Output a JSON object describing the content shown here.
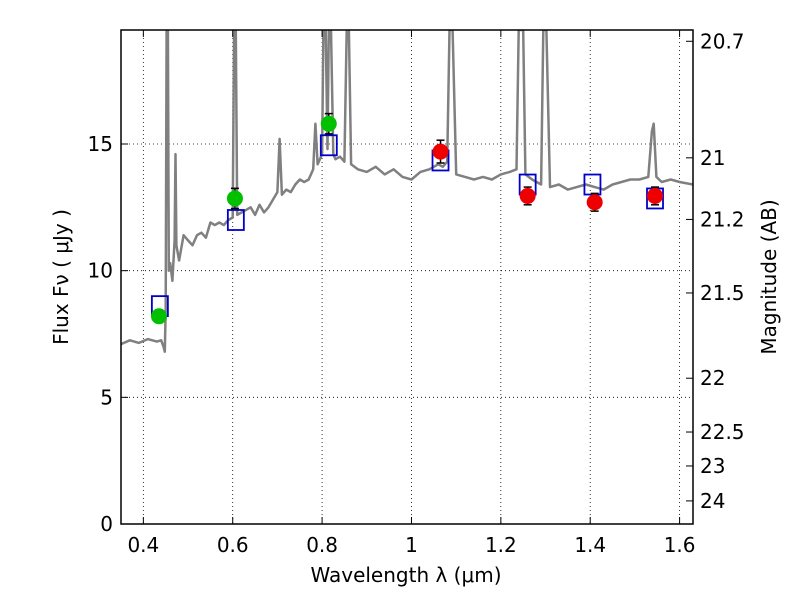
{
  "chart_data": {
    "type": "scatter",
    "xlabel": "Wavelength  λ (μm)",
    "ylabel": "Flux  Fν  ( μJy )",
    "y2label": "Magnitude (AB)",
    "xlim": [
      0.35,
      1.63
    ],
    "ylim": [
      0,
      19.5
    ],
    "grid": true,
    "x_ticks": [
      {
        "value": 0.4,
        "label": "0.4"
      },
      {
        "value": 0.6,
        "label": "0.6"
      },
      {
        "value": 0.8,
        "label": "0.8"
      },
      {
        "value": 1.0,
        "label": "1"
      },
      {
        "value": 1.2,
        "label": "1.2"
      },
      {
        "value": 1.4,
        "label": "1.4"
      },
      {
        "value": 1.6,
        "label": "1.6"
      }
    ],
    "y_ticks": [
      {
        "value": 0,
        "label": "0"
      },
      {
        "value": 5,
        "label": "5"
      },
      {
        "value": 10,
        "label": "10"
      },
      {
        "value": 15,
        "label": "15"
      }
    ],
    "y2_ticks": [
      {
        "value": 20.7,
        "label": "20.7"
      },
      {
        "value": 21,
        "label": "21"
      },
      {
        "value": 21.2,
        "label": "21.2"
      },
      {
        "value": 21.5,
        "label": "21.5"
      },
      {
        "value": 22,
        "label": "22"
      },
      {
        "value": 22.5,
        "label": "22.5"
      },
      {
        "value": 23,
        "label": "23"
      },
      {
        "value": 24,
        "label": "24"
      }
    ],
    "colors": {
      "spectrum": "#808080",
      "green": "#00c000",
      "red": "#ee0000",
      "model": "#0000cc",
      "error": "#000000"
    },
    "spectrum": [
      [
        0.35,
        7.1
      ],
      [
        0.37,
        7.25
      ],
      [
        0.39,
        7.15
      ],
      [
        0.41,
        7.3
      ],
      [
        0.43,
        7.2
      ],
      [
        0.44,
        7.25
      ],
      [
        0.445,
        7.0
      ],
      [
        0.448,
        6.8
      ],
      [
        0.45,
        8.5
      ],
      [
        0.452,
        19.5
      ],
      [
        0.455,
        19.5
      ],
      [
        0.457,
        10.0
      ],
      [
        0.46,
        10.3
      ],
      [
        0.465,
        9.6
      ],
      [
        0.47,
        11.2
      ],
      [
        0.472,
        14.6
      ],
      [
        0.474,
        11.0
      ],
      [
        0.48,
        10.4
      ],
      [
        0.49,
        11.4
      ],
      [
        0.5,
        11.2
      ],
      [
        0.51,
        11.0
      ],
      [
        0.52,
        11.4
      ],
      [
        0.53,
        11.5
      ],
      [
        0.54,
        11.3
      ],
      [
        0.55,
        11.9
      ],
      [
        0.56,
        11.8
      ],
      [
        0.57,
        11.9
      ],
      [
        0.58,
        11.8
      ],
      [
        0.59,
        12.0
      ],
      [
        0.6,
        12.1
      ],
      [
        0.603,
        19.5
      ],
      [
        0.607,
        19.5
      ],
      [
        0.61,
        12.2
      ],
      [
        0.62,
        12.3
      ],
      [
        0.63,
        12.4
      ],
      [
        0.64,
        12.5
      ],
      [
        0.65,
        12.2
      ],
      [
        0.66,
        12.6
      ],
      [
        0.67,
        12.3
      ],
      [
        0.68,
        12.5
      ],
      [
        0.69,
        12.8
      ],
      [
        0.7,
        13.1
      ],
      [
        0.705,
        15.2
      ],
      [
        0.71,
        13.0
      ],
      [
        0.72,
        13.2
      ],
      [
        0.73,
        13.1
      ],
      [
        0.74,
        13.4
      ],
      [
        0.75,
        13.6
      ],
      [
        0.76,
        13.5
      ],
      [
        0.77,
        13.6
      ],
      [
        0.78,
        14.0
      ],
      [
        0.785,
        15.8
      ],
      [
        0.79,
        14.2
      ],
      [
        0.795,
        14.4
      ],
      [
        0.8,
        14.6
      ],
      [
        0.803,
        19.5
      ],
      [
        0.808,
        19.5
      ],
      [
        0.812,
        14.8
      ],
      [
        0.815,
        19.5
      ],
      [
        0.82,
        19.5
      ],
      [
        0.825,
        14.6
      ],
      [
        0.83,
        14.4
      ],
      [
        0.84,
        14.5
      ],
      [
        0.85,
        14.3
      ],
      [
        0.855,
        19.5
      ],
      [
        0.86,
        19.5
      ],
      [
        0.865,
        14.2
      ],
      [
        0.88,
        14.0
      ],
      [
        0.9,
        13.9
      ],
      [
        0.92,
        14.1
      ],
      [
        0.94,
        13.8
      ],
      [
        0.96,
        14.0
      ],
      [
        0.98,
        13.7
      ],
      [
        1.0,
        13.6
      ],
      [
        1.02,
        13.9
      ],
      [
        1.04,
        14.0
      ],
      [
        1.06,
        14.2
      ],
      [
        1.07,
        14.1
      ],
      [
        1.08,
        14.3
      ],
      [
        1.085,
        19.5
      ],
      [
        1.092,
        19.5
      ],
      [
        1.1,
        13.8
      ],
      [
        1.12,
        13.7
      ],
      [
        1.14,
        13.6
      ],
      [
        1.16,
        13.7
      ],
      [
        1.18,
        13.6
      ],
      [
        1.2,
        13.8
      ],
      [
        1.22,
        13.9
      ],
      [
        1.235,
        14.0
      ],
      [
        1.24,
        19.5
      ],
      [
        1.25,
        19.5
      ],
      [
        1.255,
        13.8
      ],
      [
        1.27,
        13.6
      ],
      [
        1.28,
        13.5
      ],
      [
        1.29,
        13.4
      ],
      [
        1.295,
        19.5
      ],
      [
        1.302,
        19.5
      ],
      [
        1.31,
        13.3
      ],
      [
        1.33,
        13.4
      ],
      [
        1.35,
        13.2
      ],
      [
        1.37,
        13.3
      ],
      [
        1.39,
        13.4
      ],
      [
        1.41,
        13.3
      ],
      [
        1.43,
        13.2
      ],
      [
        1.45,
        13.4
      ],
      [
        1.47,
        13.5
      ],
      [
        1.49,
        13.6
      ],
      [
        1.51,
        13.6
      ],
      [
        1.53,
        13.7
      ],
      [
        1.538,
        15.5
      ],
      [
        1.542,
        15.8
      ],
      [
        1.548,
        13.7
      ],
      [
        1.56,
        13.5
      ],
      [
        1.58,
        13.6
      ],
      [
        1.6,
        13.5
      ],
      [
        1.63,
        13.4
      ]
    ],
    "photometry": [
      {
        "x": 0.435,
        "y": 8.2,
        "err": 0.25,
        "color": "green"
      },
      {
        "x": 0.605,
        "y": 12.85,
        "err": 0.4,
        "color": "green"
      },
      {
        "x": 0.815,
        "y": 15.8,
        "err": 0.4,
        "color": "green"
      },
      {
        "x": 1.065,
        "y": 14.7,
        "err": 0.45,
        "color": "red"
      },
      {
        "x": 1.26,
        "y": 12.95,
        "err": 0.35,
        "color": "red"
      },
      {
        "x": 1.41,
        "y": 12.7,
        "err": 0.35,
        "color": "red"
      },
      {
        "x": 1.545,
        "y": 12.95,
        "err": 0.35,
        "color": "red"
      }
    ],
    "model_points": [
      {
        "x": 0.437,
        "y": 8.6
      },
      {
        "x": 0.607,
        "y": 12.0
      },
      {
        "x": 0.815,
        "y": 14.95
      },
      {
        "x": 1.065,
        "y": 14.35
      },
      {
        "x": 1.26,
        "y": 13.4
      },
      {
        "x": 1.405,
        "y": 13.4
      },
      {
        "x": 1.545,
        "y": 12.85
      }
    ]
  }
}
